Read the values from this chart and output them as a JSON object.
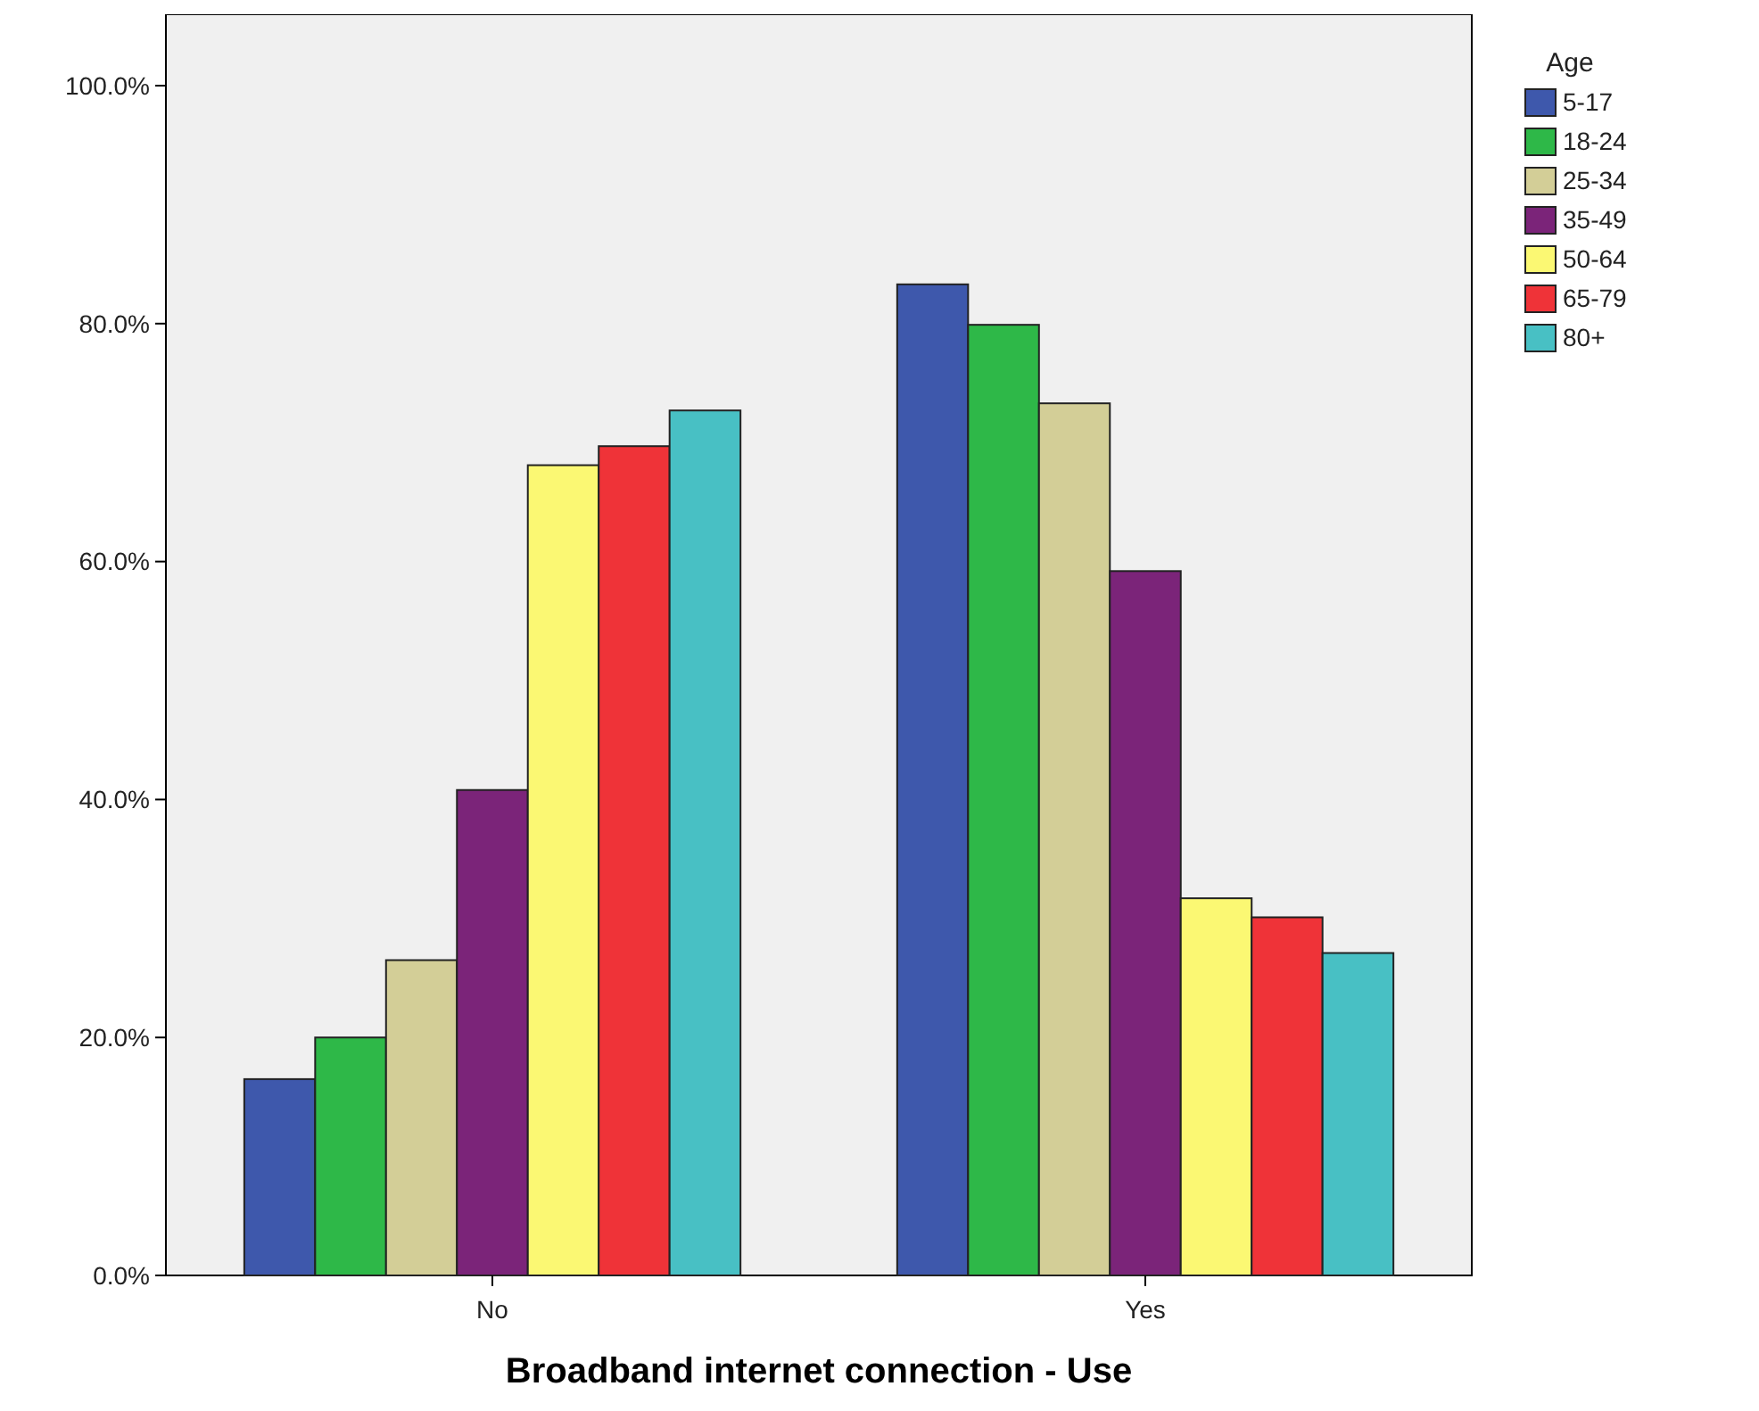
{
  "chart_data": {
    "type": "bar",
    "xlabel": "Broadband internet connection - Use",
    "legend_title": "Age",
    "categories": [
      "No",
      "Yes"
    ],
    "series": [
      {
        "name": "5-17",
        "color": "#3e58ac",
        "values": [
          16.5,
          83.3
        ]
      },
      {
        "name": "18-24",
        "color": "#2eb848",
        "values": [
          20.0,
          79.9
        ]
      },
      {
        "name": "25-34",
        "color": "#d3ce97",
        "values": [
          26.5,
          73.3
        ]
      },
      {
        "name": "35-49",
        "color": "#7b2479",
        "values": [
          40.8,
          59.2
        ]
      },
      {
        "name": "50-64",
        "color": "#fbf873",
        "values": [
          68.1,
          31.7
        ]
      },
      {
        "name": "65-79",
        "color": "#ef3338",
        "values": [
          69.7,
          30.1
        ]
      },
      {
        "name": "80+",
        "color": "#48c0c4",
        "values": [
          72.7,
          27.1
        ]
      }
    ],
    "ylim": [
      0,
      106
    ],
    "yticks": [
      {
        "value": 0,
        "label": "0.0%"
      },
      {
        "value": 20,
        "label": "20.0%"
      },
      {
        "value": 40,
        "label": "40.0%"
      },
      {
        "value": 60,
        "label": "60.0%"
      },
      {
        "value": 80,
        "label": "80.0%"
      },
      {
        "value": 100,
        "label": "100.0%"
      }
    ],
    "grid": false,
    "legend": "top right"
  }
}
